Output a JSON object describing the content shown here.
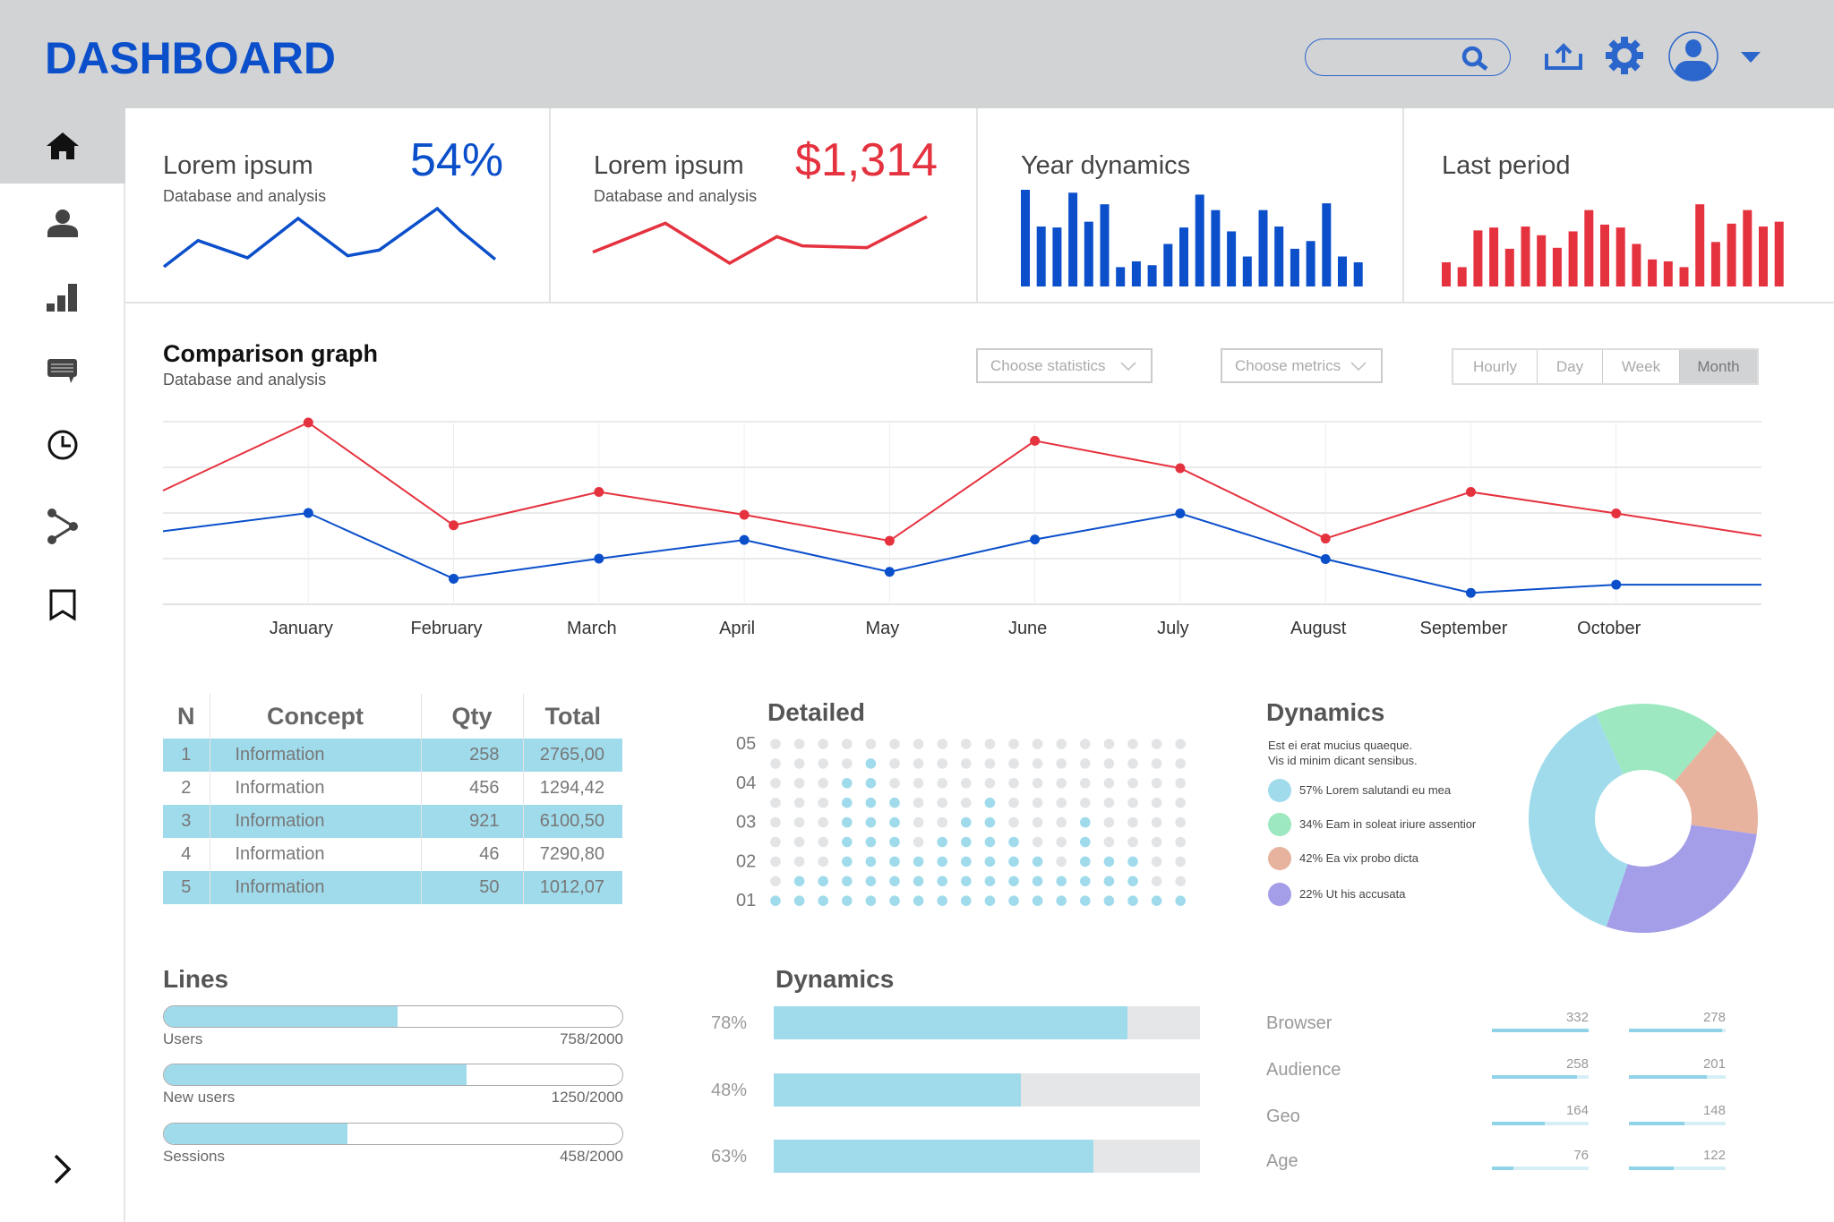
{
  "header": {
    "title": "DASHBOARD",
    "search_placeholder": "",
    "icons": [
      "search-icon",
      "upload-icon",
      "gear-icon",
      "avatar-icon",
      "caret-down-icon"
    ],
    "accent": "#0b4fcb"
  },
  "sidebar": {
    "items": [
      {
        "icon": "home-icon",
        "active": true
      },
      {
        "icon": "user-icon"
      },
      {
        "icon": "bar-chart-icon"
      },
      {
        "icon": "message-icon"
      },
      {
        "icon": "clock-icon"
      },
      {
        "icon": "share-icon"
      },
      {
        "icon": "bookmark-icon"
      }
    ],
    "expand_icon": "chevron-right-icon"
  },
  "cards": [
    {
      "title": "Lorem ipsum",
      "subtitle": "Database and analysis",
      "value": "54%",
      "color": "#0b4fcb",
      "sparkline": [
        17,
        105,
        47,
        179,
        54,
        73,
        212,
        138,
        42
      ]
    },
    {
      "title": "Lorem ipsum",
      "subtitle": "Database and analysis",
      "value": "$1,314",
      "color": "#e5323f",
      "sparkline": [
        65,
        162,
        28,
        117,
        86,
        80,
        184
      ]
    },
    {
      "title": "Year dynamics",
      "color": "#0b4fcb",
      "bars": [
        100,
        62,
        61,
        97,
        67,
        85,
        20,
        26,
        22,
        44,
        61,
        95,
        79,
        57,
        31,
        79,
        62,
        39,
        47,
        86,
        31,
        25
      ]
    },
    {
      "title": "Last period",
      "color": "#e5323f",
      "bars": [
        25,
        20,
        58,
        61,
        39,
        62,
        53,
        40,
        57,
        79,
        64,
        61,
        44,
        28,
        26,
        20,
        85,
        46,
        65,
        79,
        62,
        67
      ]
    }
  ],
  "comparison": {
    "title": "Comparison graph",
    "subtitle": "Database and analysis",
    "statistics_dropdown": "Choose statistics",
    "metrics_dropdown": "Choose metrics",
    "tabs": [
      "Hourly",
      "Day",
      "Week",
      "Month"
    ],
    "active_tab": "Month"
  },
  "chart_data": [
    {
      "type": "line",
      "categories": [
        "",
        "January",
        "February",
        "March",
        "April",
        "May",
        "June",
        "July",
        "August",
        "September",
        "October",
        ""
      ],
      "series": [
        {
          "color": "#e5323f",
          "values": [
            2.49,
            3.98,
            1.73,
            2.46,
            1.96,
            1.39,
            3.58,
            2.98,
            1.44,
            2.46,
            1.99,
            1.5
          ]
        },
        {
          "color": "#0b4fcb",
          "values": [
            1.6,
            2.0,
            0.56,
            1.0,
            1.41,
            0.71,
            1.42,
            1.99,
            0.99,
            0.25,
            0.43,
            0.43
          ]
        }
      ],
      "ylim": [
        0,
        4
      ],
      "grid": true
    },
    {
      "type": "pie",
      "title": "Dynamics",
      "slices": [
        {
          "label": "57% Lorem salutandi eu mea",
          "share": 38,
          "color": "#a0dbec"
        },
        {
          "label": "34% Eam in soleat iriure assentior",
          "share": 18,
          "color": "#9de8c0"
        },
        {
          "label": "42% Ea vix probo dicta",
          "share": 16,
          "color": "#e8b39e"
        },
        {
          "label": "22% Ut his accusata",
          "share": 28,
          "color": "#a49ee8"
        }
      ]
    }
  ],
  "table": {
    "headers": [
      "N",
      "Concept",
      "Qty",
      "Total"
    ],
    "rows": [
      [
        "1",
        "Information",
        "258",
        "2765,00"
      ],
      [
        "2",
        "Information",
        "456",
        "1294,42"
      ],
      [
        "3",
        "Information",
        "921",
        "6100,50"
      ],
      [
        "4",
        "Information",
        "46",
        "7290,80"
      ],
      [
        "5",
        "Information",
        "50",
        "1012,07"
      ]
    ]
  },
  "detailed": {
    "title": "Detailed",
    "y_labels": [
      "05",
      "04",
      "03",
      "02",
      "01"
    ],
    "column_heights": [
      1,
      2,
      2,
      7,
      8,
      6,
      3,
      4,
      5,
      6,
      4,
      3,
      2,
      5,
      3,
      3,
      1,
      1
    ],
    "rows": 9
  },
  "dynamics": {
    "title": "Dynamics",
    "description": [
      "Est ei erat mucius quaeque.",
      "Vis id minim dicant sensibus."
    ]
  },
  "lines": {
    "title": "Lines",
    "items": [
      {
        "label": "Users",
        "value": "758/2000",
        "fill": 0.51
      },
      {
        "label": "New users",
        "value": "1250/2000",
        "fill": 0.66
      },
      {
        "label": "Sessions",
        "value": "458/2000",
        "fill": 0.4
      }
    ]
  },
  "dynamics_bars": {
    "title": "Dynamics",
    "items": [
      {
        "label": "78%",
        "fill": 0.83
      },
      {
        "label": "48%",
        "fill": 0.58
      },
      {
        "label": "63%",
        "fill": 0.75
      }
    ]
  },
  "stats": {
    "items": [
      {
        "label": "Browser",
        "a": "332",
        "a_fill": 1.0,
        "b": "278",
        "b_fill": 0.96
      },
      {
        "label": "Audience",
        "a": "258",
        "a_fill": 0.88,
        "b": "201",
        "b_fill": 0.81
      },
      {
        "label": "Geo",
        "a": "164",
        "a_fill": 0.55,
        "b": "148",
        "b_fill": 0.57
      },
      {
        "label": "Age",
        "a": "76",
        "a_fill": 0.22,
        "b": "122",
        "b_fill": 0.46
      }
    ]
  }
}
